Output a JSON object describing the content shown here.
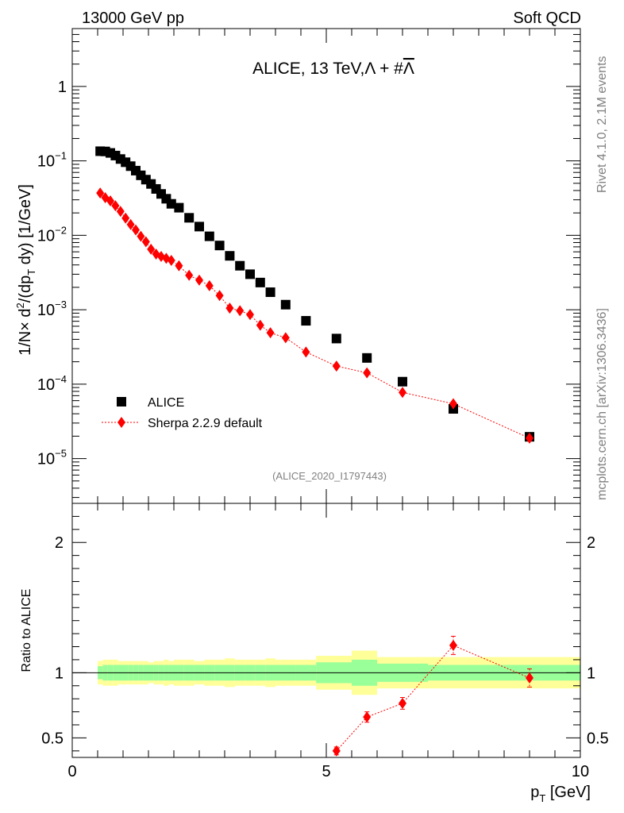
{
  "header": {
    "left": "13000 GeV pp",
    "right": "Soft QCD"
  },
  "side": {
    "rivet": "Rivet 4.1.0,  2.1M events",
    "mcplots": "mcplots.cern.ch [arXiv:1306.3436]"
  },
  "chart_data": [
    {
      "type": "scatter",
      "title": "ALICE, 13 TeV,Λ + #Λ̄",
      "ylabel": "1/N× d²/(dp_T dy) [1/GeV]",
      "xlabel": "p_T [GeV]",
      "xlim": [
        0,
        10
      ],
      "ylim": [
        2.5e-06,
        6
      ],
      "yscale": "log",
      "watermark": "(ALICE_2020_I1797443)",
      "y_ticks": [
        {
          "v": 1e-05,
          "base": "10",
          "exp": "−5"
        },
        {
          "v": 0.0001,
          "base": "10",
          "exp": "−4"
        },
        {
          "v": 0.001,
          "base": "10",
          "exp": "−3"
        },
        {
          "v": 0.01,
          "base": "10",
          "exp": "−2"
        },
        {
          "v": 0.1,
          "base": "10",
          "exp": "−1"
        },
        {
          "v": 1,
          "base": "1",
          "exp": ""
        }
      ],
      "legend": [
        {
          "name": "ALICE",
          "marker": "square",
          "color": "#000000"
        },
        {
          "name": "Sherpa 2.2.9 default",
          "marker": "diamond",
          "color": "#ff0000"
        }
      ],
      "series": [
        {
          "name": "ALICE",
          "color": "#000000",
          "x": [
            0.55,
            0.65,
            0.75,
            0.85,
            0.95,
            1.05,
            1.15,
            1.25,
            1.35,
            1.45,
            1.55,
            1.65,
            1.75,
            1.85,
            1.95,
            2.1,
            2.3,
            2.5,
            2.7,
            2.9,
            3.1,
            3.3,
            3.5,
            3.7,
            3.9,
            4.2,
            4.6,
            5.2,
            5.8,
            6.5,
            7.5,
            9.0
          ],
          "y": [
            0.135,
            0.134,
            0.128,
            0.118,
            0.106,
            0.096,
            0.085,
            0.074,
            0.064,
            0.056,
            0.049,
            0.042,
            0.036,
            0.031,
            0.0265,
            0.0235,
            0.0172,
            0.0131,
            0.0097,
            0.0073,
            0.0053,
            0.0039,
            0.003,
            0.00232,
            0.00172,
            0.00117,
            0.00071,
            0.00041,
            0.000225,
            0.000108,
            4.65e-05,
            1.96e-05
          ]
        },
        {
          "name": "Sherpa 2.2.9 default",
          "color": "#ff0000",
          "x": [
            0.55,
            0.65,
            0.75,
            0.85,
            0.95,
            1.05,
            1.15,
            1.25,
            1.35,
            1.45,
            1.55,
            1.65,
            1.75,
            1.85,
            1.95,
            2.1,
            2.3,
            2.5,
            2.7,
            2.9,
            3.1,
            3.3,
            3.5,
            3.7,
            3.9,
            4.2,
            4.6,
            5.2,
            5.8,
            6.5,
            7.5,
            9.0
          ],
          "y": [
            0.037,
            0.032,
            0.029,
            0.025,
            0.021,
            0.017,
            0.014,
            0.0118,
            0.0097,
            0.0082,
            0.0065,
            0.0056,
            0.0052,
            0.0049,
            0.0046,
            0.0039,
            0.0029,
            0.0025,
            0.0021,
            0.00155,
            0.00105,
            0.00097,
            0.00086,
            0.00062,
            0.00049,
            0.00042,
            0.00027,
            0.000175,
            0.000142,
            7.75e-05,
            5.45e-05,
            1.88e-05
          ]
        }
      ]
    },
    {
      "type": "scatter",
      "ylabel": "Ratio to ALICE",
      "xlabel": "p_T [GeV]",
      "xlim": [
        0,
        10
      ],
      "ylim": [
        0.35,
        2.3
      ],
      "y_ticks": [
        {
          "v": 0.5,
          "label": "0.5"
        },
        {
          "v": 1,
          "label": "1"
        },
        {
          "v": 2,
          "label": "2"
        }
      ],
      "x_ticks": [
        {
          "v": 0,
          "label": "0"
        },
        {
          "v": 5,
          "label": "5"
        },
        {
          "v": 10,
          "label": "10"
        }
      ],
      "reference_line": 1,
      "bands": {
        "edges": [
          0.5,
          0.6,
          0.7,
          0.8,
          0.9,
          1.0,
          1.1,
          1.2,
          1.3,
          1.4,
          1.5,
          1.6,
          1.7,
          1.8,
          1.9,
          2.0,
          2.2,
          2.4,
          2.6,
          2.8,
          3.0,
          3.2,
          3.4,
          3.6,
          3.8,
          4.0,
          4.4,
          4.8,
          5.5,
          6.0,
          7.0,
          8.0,
          10.0
        ],
        "stat_lo": [
          0.95,
          0.94,
          0.94,
          0.94,
          0.94,
          0.94,
          0.94,
          0.94,
          0.94,
          0.94,
          0.94,
          0.94,
          0.94,
          0.94,
          0.94,
          0.94,
          0.94,
          0.94,
          0.94,
          0.94,
          0.94,
          0.94,
          0.94,
          0.94,
          0.94,
          0.94,
          0.94,
          0.92,
          0.9,
          0.93,
          0.94,
          0.94
        ],
        "stat_hi": [
          1.05,
          1.06,
          1.06,
          1.06,
          1.06,
          1.06,
          1.06,
          1.06,
          1.06,
          1.06,
          1.06,
          1.06,
          1.06,
          1.06,
          1.06,
          1.06,
          1.06,
          1.06,
          1.06,
          1.06,
          1.06,
          1.06,
          1.06,
          1.06,
          1.06,
          1.06,
          1.06,
          1.08,
          1.1,
          1.07,
          1.06,
          1.06
        ],
        "syst_lo": [
          0.91,
          0.9,
          0.9,
          0.9,
          0.91,
          0.91,
          0.91,
          0.91,
          0.91,
          0.91,
          0.92,
          0.91,
          0.91,
          0.9,
          0.91,
          0.9,
          0.9,
          0.91,
          0.9,
          0.9,
          0.89,
          0.9,
          0.9,
          0.9,
          0.89,
          0.9,
          0.9,
          0.87,
          0.83,
          0.88,
          0.88,
          0.88
        ],
        "syst_hi": [
          1.09,
          1.1,
          1.1,
          1.1,
          1.09,
          1.09,
          1.09,
          1.09,
          1.09,
          1.09,
          1.08,
          1.09,
          1.09,
          1.1,
          1.09,
          1.1,
          1.1,
          1.09,
          1.1,
          1.1,
          1.11,
          1.1,
          1.1,
          1.1,
          1.11,
          1.1,
          1.1,
          1.13,
          1.17,
          1.12,
          1.12,
          1.12
        ]
      },
      "series": [
        {
          "name": "Sherpa 2.2.9 default",
          "color": "#ff0000",
          "x": [
            5.2,
            5.8,
            6.5,
            7.5,
            9.0
          ],
          "y": [
            0.4,
            0.66,
            0.765,
            1.21,
            0.96
          ],
          "yerr": [
            0.03,
            0.04,
            0.045,
            0.07,
            0.07
          ]
        }
      ]
    }
  ]
}
